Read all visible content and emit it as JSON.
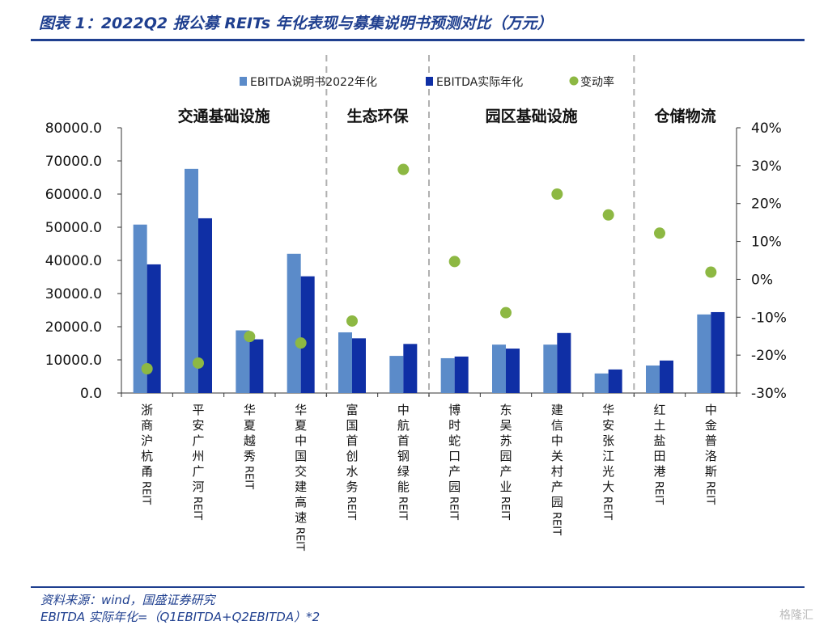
{
  "title": "图表 1：2022Q2 报公募 REITs 年化表现与募集说明书预测对比（万元）",
  "source_line1": "资料来源：wind，国盛证券研究",
  "source_line2": "EBITDA 实际年化=（Q1EBITDA+Q2EBITDA）*2",
  "watermark": "格隆汇",
  "colors": {
    "prospectus": "#5B8BC9",
    "actual": "#0F2FA5",
    "change": "#8DB843",
    "header": "#1F3F8F"
  },
  "chart_data": {
    "type": "bar",
    "categories": [
      "浙商沪杭甬REIT",
      "平安广州广河REIT",
      "华夏越秀REIT",
      "华夏中国交建高速REIT",
      "富国首创水务REIT",
      "中航首钢绿能REIT",
      "博时蛇口产园REIT",
      "东吴苏园产业REIT",
      "建信中关村产园REIT",
      "华安张江光大REIT",
      "红土盐田港REIT",
      "中金普洛斯REIT"
    ],
    "groups": [
      {
        "label": "交通基础设施",
        "start": 0,
        "end": 3
      },
      {
        "label": "生态环保",
        "start": 4,
        "end": 5
      },
      {
        "label": "园区基础设施",
        "start": 6,
        "end": 9
      },
      {
        "label": "仓储物流",
        "start": 10,
        "end": 11
      }
    ],
    "series": [
      {
        "name": "EBITDA说明书2022年化",
        "axis": "left",
        "kind": "bar",
        "values": [
          50800,
          67600,
          18900,
          42000,
          18300,
          11200,
          10500,
          14600,
          14600,
          5900,
          8300,
          23700
        ]
      },
      {
        "name": "EBITDA实际年化",
        "axis": "left",
        "kind": "bar",
        "values": [
          38800,
          52700,
          16200,
          35200,
          16500,
          14800,
          11000,
          13400,
          18100,
          7100,
          9800,
          24400
        ]
      },
      {
        "name": "变动率",
        "axis": "right",
        "kind": "scatter",
        "values": [
          -23.6,
          -22.1,
          -15.1,
          -16.8,
          -11.0,
          29.0,
          4.7,
          -8.8,
          22.5,
          17.0,
          12.2,
          1.9
        ]
      }
    ],
    "left_axis": {
      "min": 0,
      "max": 80000,
      "step": 10000,
      "tick_labels": [
        "0.0",
        "10000.0",
        "20000.0",
        "30000.0",
        "40000.0",
        "50000.0",
        "60000.0",
        "70000.0",
        "80000.0"
      ]
    },
    "right_axis": {
      "min": -30,
      "max": 40,
      "step": 10,
      "tick_labels": [
        "-30%",
        "-20%",
        "-10%",
        "0%",
        "10%",
        "20%",
        "30%",
        "40%"
      ]
    },
    "legend_position": "top",
    "grid": false
  }
}
